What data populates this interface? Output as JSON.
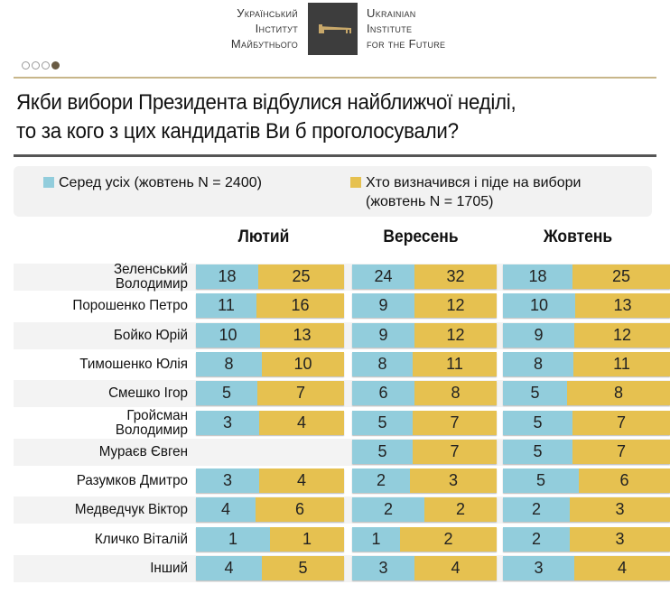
{
  "header": {
    "logo_left": [
      "Український",
      "Інститут",
      "Майбутнього"
    ],
    "logo_right": [
      "Ukrainian",
      "Institute",
      "for the Future"
    ],
    "pager": {
      "total": 4,
      "active": 4
    }
  },
  "title_lines": [
    "Якби вибори Президента відбулися найближчої неділі,",
    "то за кого з цих кандидатів Ви б проголосували?"
  ],
  "colors": {
    "all": "#92cddc",
    "decided": "#e6c150",
    "accent": "#c8b68a"
  },
  "chart_data": {
    "type": "bar",
    "subtype": "stacked-horizontal-table",
    "legend": [
      {
        "name": "Серед усіх (жовтень N = 2400)",
        "color": "#92cddc"
      },
      {
        "name_lines": [
          "Хто визначився і піде на вибори",
          "(жовтень N = 1705)"
        ],
        "color": "#e6c150"
      }
    ],
    "periods": [
      "Лютий",
      "Вересень",
      "Жовтень"
    ],
    "categories": [
      [
        "Зеленський",
        "Володимир"
      ],
      [
        "Порошенко Петро"
      ],
      [
        "Бойко Юрій"
      ],
      [
        "Тимошенко Юлія"
      ],
      [
        "Смешко Ігор"
      ],
      [
        "Гройсман",
        "Володимир"
      ],
      [
        "Мураєв Євген"
      ],
      [
        "Разумков Дмитро"
      ],
      [
        "Медведчук Віктор"
      ],
      [
        "Кличко Віталій"
      ],
      [
        "Інший"
      ]
    ],
    "values": [
      [
        [
          18,
          25
        ],
        [
          24,
          32
        ],
        [
          18,
          25
        ]
      ],
      [
        [
          11,
          16
        ],
        [
          9,
          12
        ],
        [
          10,
          13
        ]
      ],
      [
        [
          10,
          13
        ],
        [
          9,
          12
        ],
        [
          9,
          12
        ]
      ],
      [
        [
          8,
          10
        ],
        [
          8,
          11
        ],
        [
          8,
          11
        ]
      ],
      [
        [
          5,
          7
        ],
        [
          6,
          8
        ],
        [
          5,
          8
        ]
      ],
      [
        [
          3,
          4
        ],
        [
          5,
          7
        ],
        [
          5,
          7
        ]
      ],
      [
        null,
        [
          5,
          7
        ],
        [
          5,
          7
        ]
      ],
      [
        [
          3,
          4
        ],
        [
          2,
          3
        ],
        [
          5,
          6
        ]
      ],
      [
        [
          4,
          6
        ],
        [
          2,
          2
        ],
        [
          2,
          3
        ]
      ],
      [
        [
          1,
          1
        ],
        [
          1,
          2
        ],
        [
          2,
          3
        ]
      ],
      [
        [
          4,
          5
        ],
        [
          3,
          4
        ],
        [
          3,
          4
        ]
      ]
    ],
    "unit": "%"
  }
}
